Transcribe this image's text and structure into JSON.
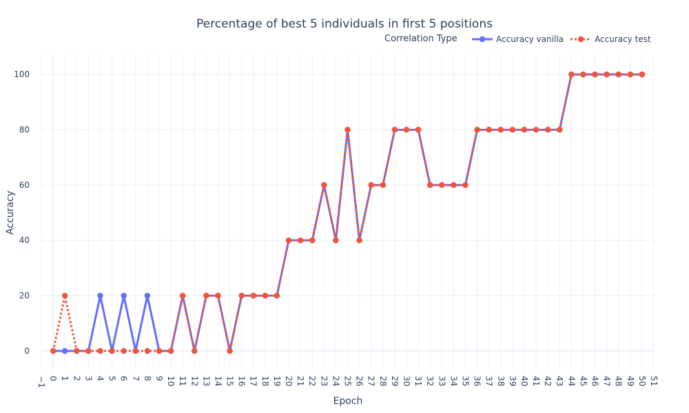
{
  "chart_data": {
    "type": "line",
    "title": "Percentage of best 5 individuals in first 5 positions",
    "xlabel": "Epoch",
    "ylabel": "Accuracy",
    "xlim": [
      -1,
      51
    ],
    "ylim": [
      -7,
      107
    ],
    "x_ticks": [
      -1,
      0,
      1,
      2,
      3,
      4,
      5,
      6,
      7,
      8,
      9,
      10,
      11,
      12,
      13,
      14,
      15,
      16,
      17,
      18,
      19,
      20,
      21,
      22,
      23,
      24,
      25,
      26,
      27,
      28,
      29,
      30,
      31,
      32,
      33,
      34,
      35,
      36,
      37,
      38,
      39,
      40,
      41,
      42,
      43,
      44,
      45,
      46,
      47,
      48,
      49,
      50,
      51
    ],
    "x_tick_labels": [
      "−1",
      "0",
      "1",
      "2",
      "3",
      "4",
      "5",
      "6",
      "7",
      "8",
      "9",
      "10",
      "11",
      "12",
      "13",
      "14",
      "15",
      "16",
      "17",
      "18",
      "19",
      "20",
      "21",
      "22",
      "23",
      "24",
      "25",
      "26",
      "27",
      "28",
      "29",
      "30",
      "31",
      "32",
      "33",
      "34",
      "35",
      "36",
      "37",
      "38",
      "39",
      "40",
      "41",
      "42",
      "43",
      "44",
      "45",
      "46",
      "47",
      "48",
      "49",
      "50",
      "51"
    ],
    "y_ticks": [
      0,
      20,
      40,
      60,
      80,
      100
    ],
    "y_tick_labels": [
      "0",
      "20",
      "40",
      "60",
      "80",
      "100"
    ],
    "grid": true,
    "legend": {
      "title": "Correlation Type",
      "placement": "top-right",
      "orientation": "horizontal"
    },
    "x": [
      0,
      1,
      2,
      3,
      4,
      5,
      6,
      7,
      8,
      9,
      10,
      11,
      12,
      13,
      14,
      15,
      16,
      17,
      18,
      19,
      20,
      21,
      22,
      23,
      24,
      25,
      26,
      27,
      28,
      29,
      30,
      31,
      32,
      33,
      34,
      35,
      36,
      37,
      38,
      39,
      40,
      41,
      42,
      43,
      44,
      45,
      46,
      47,
      48,
      49,
      50
    ],
    "series": [
      {
        "name": "Accuracy vanilla",
        "color": "#636efa",
        "dash": "solid",
        "values": [
          0,
          0,
          0,
          0,
          20,
          0,
          20,
          0,
          20,
          0,
          0,
          20,
          0,
          20,
          20,
          0,
          20,
          20,
          20,
          20,
          40,
          40,
          40,
          60,
          40,
          80,
          40,
          60,
          60,
          80,
          80,
          80,
          60,
          60,
          60,
          60,
          80,
          80,
          80,
          80,
          80,
          80,
          80,
          80,
          100,
          100,
          100,
          100,
          100,
          100,
          100
        ]
      },
      {
        "name": "Accuracy test",
        "color": "#ef553b",
        "dash": "dot",
        "values": [
          0,
          20,
          0,
          0,
          0,
          0,
          0,
          0,
          0,
          0,
          0,
          20,
          0,
          20,
          20,
          0,
          20,
          20,
          20,
          20,
          40,
          40,
          40,
          60,
          40,
          80,
          40,
          60,
          60,
          80,
          80,
          80,
          60,
          60,
          60,
          60,
          80,
          80,
          80,
          80,
          80,
          80,
          80,
          80,
          100,
          100,
          100,
          100,
          100,
          100,
          100
        ]
      }
    ]
  }
}
